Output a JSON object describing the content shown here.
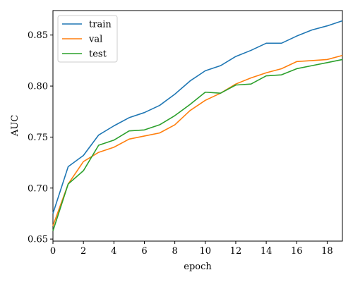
{
  "chart_data": {
    "type": "line",
    "title": "",
    "xlabel": "epoch",
    "ylabel": "AUC",
    "xlim": [
      0,
      19
    ],
    "ylim": [
      0.648,
      0.874
    ],
    "xticks": [
      0,
      2,
      4,
      6,
      8,
      10,
      12,
      14,
      16,
      18
    ],
    "yticks": [
      0.65,
      0.7,
      0.75,
      0.8,
      0.85
    ],
    "grid": false,
    "legend_position": "upper-left",
    "x": [
      0,
      1,
      2,
      3,
      4,
      5,
      6,
      7,
      8,
      9,
      10,
      11,
      12,
      13,
      14,
      15,
      16,
      17,
      18,
      19
    ],
    "series": [
      {
        "name": "train",
        "color": "#1f77b4",
        "values": [
          0.675,
          0.721,
          0.732,
          0.752,
          0.761,
          0.769,
          0.774,
          0.781,
          0.792,
          0.805,
          0.815,
          0.82,
          0.829,
          0.835,
          0.842,
          0.842,
          0.849,
          0.855,
          0.859,
          0.864
        ]
      },
      {
        "name": "val",
        "color": "#ff7f0e",
        "values": [
          0.663,
          0.704,
          0.726,
          0.735,
          0.74,
          0.748,
          0.751,
          0.754,
          0.762,
          0.776,
          0.786,
          0.793,
          0.802,
          0.808,
          0.813,
          0.817,
          0.824,
          0.825,
          0.826,
          0.83
        ]
      },
      {
        "name": "test",
        "color": "#2ca02c",
        "values": [
          0.658,
          0.704,
          0.717,
          0.742,
          0.747,
          0.756,
          0.757,
          0.762,
          0.771,
          0.782,
          0.794,
          0.793,
          0.801,
          0.802,
          0.81,
          0.811,
          0.817,
          0.82,
          0.823,
          0.826
        ]
      }
    ]
  }
}
